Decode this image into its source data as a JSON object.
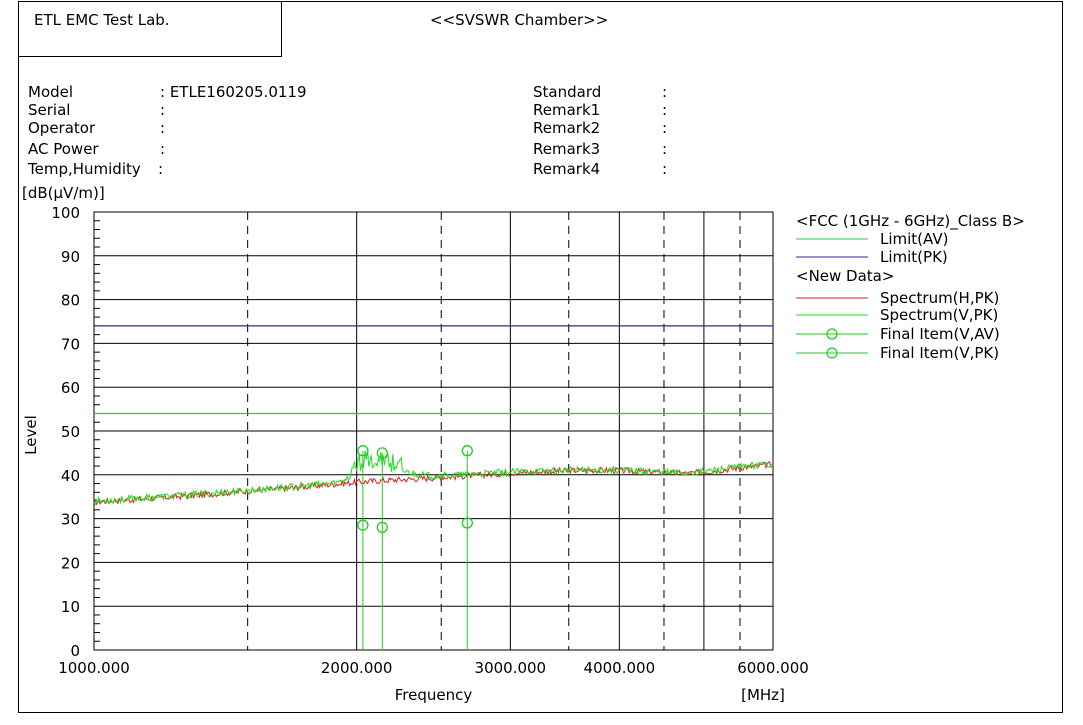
{
  "header": {
    "lab_name": "ETL EMC Test Lab.",
    "chamber": "<<SVSWR Chamber>>"
  },
  "info": {
    "left": [
      {
        "label": "Model",
        "value": ": ETLE160205.0119"
      },
      {
        "label": "Serial",
        "value": ":"
      },
      {
        "label": "Operator",
        "value": ":"
      },
      {
        "label": "AC Power",
        "value": ":"
      },
      {
        "label": "Temp,Humidity",
        "value": ":"
      }
    ],
    "right": [
      {
        "label": "Standard",
        "value": ":"
      },
      {
        "label": "Remark1",
        "value": ":"
      },
      {
        "label": "Remark2",
        "value": ":"
      },
      {
        "label": "Remark3",
        "value": ":"
      },
      {
        "label": "Remark4",
        "value": ":"
      }
    ]
  },
  "chart_data": {
    "type": "line",
    "ylabel": "Level",
    "yunit": "[dB(µV/m)]",
    "xlabel": "Frequency",
    "xunit": "[MHz]",
    "xscale": "log",
    "xlim": [
      1000,
      6000
    ],
    "ylim": [
      0,
      100
    ],
    "yticks": [
      0,
      10,
      20,
      30,
      40,
      50,
      60,
      70,
      80,
      90,
      100
    ],
    "xtick_labels": [
      {
        "x": 1000,
        "label": "1000.000"
      },
      {
        "x": 2000,
        "label": "2000.000"
      },
      {
        "x": 3000,
        "label": "3000.000"
      },
      {
        "x": 4000,
        "label": "4000.000"
      },
      {
        "x": 6000,
        "label": "6000.000"
      }
    ],
    "grid_solid_x": [
      2000,
      3000,
      4000,
      5000
    ],
    "grid_dashed_x": [
      1500,
      2500,
      3500,
      4500,
      5500
    ],
    "grid": true,
    "legend_position": "right",
    "legend": [
      {
        "text": "<FCC (1GHz - 6GHz)_Class B>",
        "type": "heading"
      },
      {
        "text": "Limit(AV)",
        "type": "line",
        "color": "#33cc33"
      },
      {
        "text": "Limit(PK)",
        "type": "line",
        "color": "#2a2aaa"
      },
      {
        "text": "<New Data>",
        "type": "heading"
      },
      {
        "text": "Spectrum(H,PK)",
        "type": "line",
        "color": "#dd2222"
      },
      {
        "text": "Spectrum(V,PK)",
        "type": "line",
        "color": "#22dd22"
      },
      {
        "text": "Final Item(V,AV)",
        "type": "marker",
        "color": "#22cc22"
      },
      {
        "text": "Final Item(V,PK)",
        "type": "marker",
        "color": "#22cc22"
      }
    ],
    "limits": [
      {
        "name": "Limit(AV)",
        "value": 54,
        "color": "#33cc33"
      },
      {
        "name": "Limit(PK)",
        "value": 74,
        "color": "#2a2aaa"
      }
    ],
    "spectrum_h": {
      "name": "Spectrum(H,PK)",
      "color": "#dd2222",
      "x": [
        1000,
        1100,
        1200,
        1300,
        1400,
        1500,
        1600,
        1700,
        1800,
        1900,
        2000,
        2100,
        2200,
        2400,
        2600,
        2800,
        3000,
        3300,
        3600,
        4000,
        4400,
        4800,
        5200,
        5600,
        6000
      ],
      "y": [
        33.8,
        34.3,
        34.8,
        35.3,
        35.8,
        36.3,
        36.7,
        37.1,
        37.5,
        37.9,
        38.3,
        38.6,
        38.8,
        39.2,
        39.6,
        40.0,
        40.4,
        40.8,
        41.0,
        41.0,
        40.6,
        40.3,
        41.0,
        41.8,
        42.4
      ]
    },
    "spectrum_v": {
      "name": "Spectrum(V,PK)",
      "color": "#22dd22",
      "x": [
        1000,
        1100,
        1200,
        1300,
        1400,
        1500,
        1600,
        1700,
        1800,
        1900,
        1960,
        2000,
        2050,
        2100,
        2150,
        2200,
        2300,
        2400,
        2600,
        2800,
        3000,
        3300,
        3600,
        4000,
        4400,
        4800,
        5200,
        5600,
        6000
      ],
      "y": [
        34.0,
        34.5,
        35.0,
        35.5,
        36.0,
        36.4,
        36.9,
        37.3,
        37.7,
        38.2,
        39.5,
        41.5,
        42.5,
        43.0,
        42.2,
        41.5,
        40.5,
        39.8,
        39.9,
        40.3,
        40.6,
        40.9,
        41.1,
        41.1,
        40.7,
        40.4,
        41.2,
        42.0,
        42.6
      ]
    },
    "final_items": {
      "x": [
        2033,
        2140,
        2678
      ],
      "av": [
        28.5,
        28.0,
        29.0
      ],
      "pk": [
        45.5,
        45.0,
        45.5
      ],
      "color": "#22cc22"
    }
  }
}
